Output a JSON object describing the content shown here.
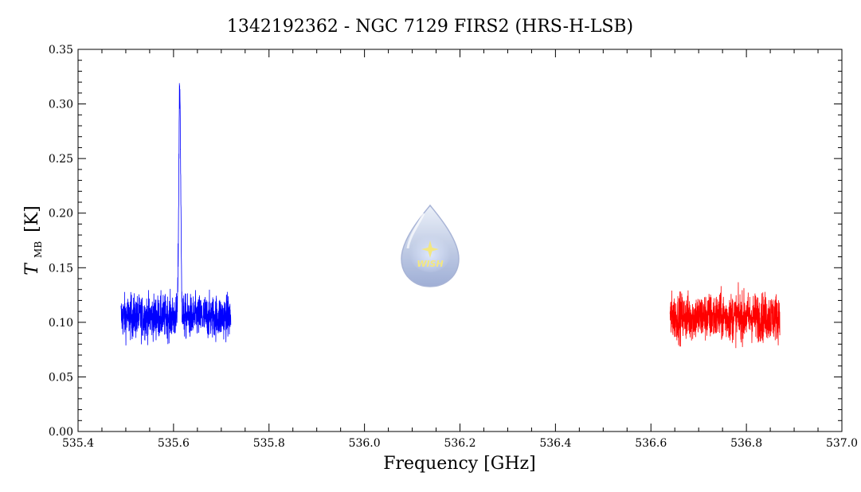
{
  "chart_data": {
    "type": "line",
    "title": "1342192362 - NGC 7129 FIRS2 (HRS-H-LSB)",
    "xlabel": "Frequency [GHz]",
    "ylabel_main": "T",
    "ylabel_sub": "MB",
    "ylabel_unit": "[K]",
    "xlim": [
      535.4,
      537.0
    ],
    "ylim": [
      0.0,
      0.35
    ],
    "xticks": [
      "535.4",
      "535.6",
      "535.8",
      "536.0",
      "536.2",
      "536.4",
      "536.6",
      "536.8",
      "537.0"
    ],
    "yticks": [
      "0.00",
      "0.05",
      "0.10",
      "0.15",
      "0.20",
      "0.25",
      "0.30",
      "0.35"
    ],
    "xtick_values": [
      535.4,
      535.6,
      535.8,
      536.0,
      536.2,
      536.4,
      536.6,
      536.8,
      537.0
    ],
    "ytick_values": [
      0.0,
      0.05,
      0.1,
      0.15,
      0.2,
      0.25,
      0.3,
      0.35
    ],
    "series": [
      {
        "color": "#0000ff",
        "x_range": [
          535.49,
          535.72
        ],
        "baseline": 0.105,
        "noise_amplitude": 0.022,
        "line": {
          "center": 535.613,
          "peak": 0.315,
          "width": 0.002
        }
      },
      {
        "color": "#ff0000",
        "x_range": [
          536.64,
          536.87
        ],
        "baseline": 0.105,
        "noise_amplitude": 0.024
      }
    ]
  },
  "logo": {
    "text": "WISH"
  }
}
